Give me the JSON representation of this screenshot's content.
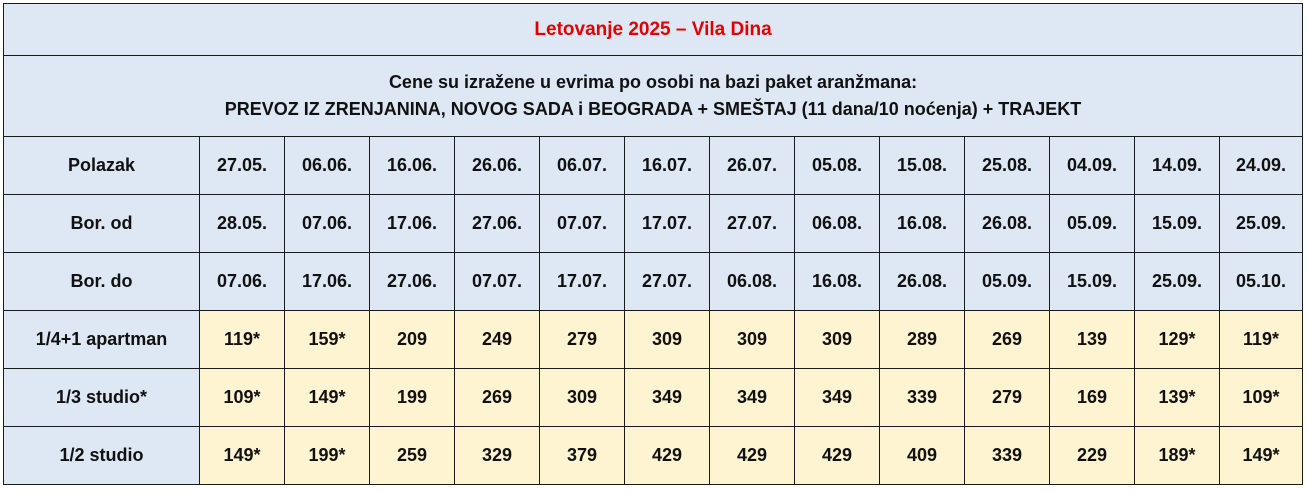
{
  "title": "Letovanje 2025 – Vila Dina",
  "info": {
    "line1": "Cene su izražene u evrima po osobi na bazi paket aranžmana:",
    "line2": "PREVOZ IZ ZRENJANINA, NOVOG SADA i BEOGRADA + SMEŠTAJ (11 dana/10 noćenja) + TRAJEKT"
  },
  "rows": {
    "polazak": {
      "label": "Polazak",
      "values": [
        "27.05.",
        "06.06.",
        "16.06.",
        "26.06.",
        "06.07.",
        "16.07.",
        "26.07.",
        "05.08.",
        "15.08.",
        "25.08.",
        "04.09.",
        "14.09.",
        "24.09."
      ]
    },
    "bor_od": {
      "label": "Bor. od",
      "values": [
        "28.05.",
        "07.06.",
        "17.06.",
        "27.06.",
        "07.07.",
        "17.07.",
        "27.07.",
        "06.08.",
        "16.08.",
        "26.08.",
        "05.09.",
        "15.09.",
        "25.09."
      ]
    },
    "bor_do": {
      "label": "Bor. do",
      "values": [
        "07.06.",
        "17.06.",
        "27.06.",
        "07.07.",
        "17.07.",
        "27.07.",
        "06.08.",
        "16.08.",
        "26.08.",
        "05.09.",
        "15.09.",
        "25.09.",
        "05.10."
      ]
    }
  },
  "prices": [
    {
      "label": "1/4+1 apartman",
      "values": [
        "119*",
        "159*",
        "209",
        "249",
        "279",
        "309",
        "309",
        "309",
        "289",
        "269",
        "139",
        "129*",
        "119*"
      ]
    },
    {
      "label": "1/3 studio*",
      "values": [
        "109*",
        "149*",
        "199",
        "269",
        "309",
        "349",
        "349",
        "349",
        "339",
        "279",
        "169",
        "139*",
        "109*"
      ]
    },
    {
      "label": "1/2 studio",
      "values": [
        "149*",
        "199*",
        "259",
        "329",
        "379",
        "429",
        "429",
        "429",
        "409",
        "339",
        "229",
        "189*",
        "149*"
      ]
    }
  ]
}
